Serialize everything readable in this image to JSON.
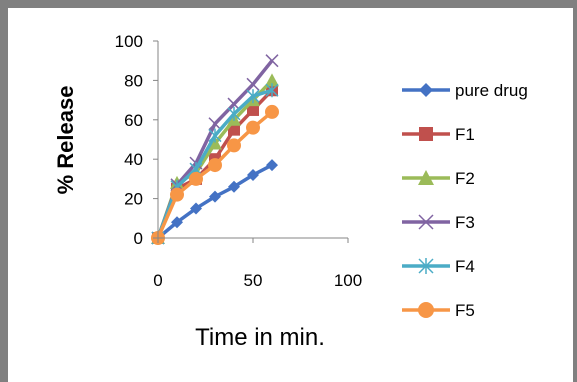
{
  "chart_data": {
    "type": "line",
    "title": "",
    "xlabel": "Time in min.",
    "ylabel": "% Release",
    "xlim": [
      0,
      100
    ],
    "ylim": [
      0,
      100
    ],
    "x_ticks": [
      "0",
      "50",
      "100"
    ],
    "y_ticks": [
      "0",
      "20",
      "40",
      "60",
      "80",
      "100"
    ],
    "grid": false,
    "legend_position": "right",
    "series": [
      {
        "name": "pure drug",
        "marker": "diamond",
        "color": "#4472c4",
        "x": [
          0,
          10,
          20,
          30,
          40,
          50,
          60
        ],
        "y": [
          0,
          8,
          15,
          21,
          26,
          32,
          37
        ]
      },
      {
        "name": "F1",
        "marker": "square",
        "color": "#c0504d",
        "x": [
          0,
          10,
          20,
          30,
          40,
          50,
          60
        ],
        "y": [
          0,
          25,
          30,
          40,
          55,
          65,
          75
        ]
      },
      {
        "name": "F2",
        "marker": "triangle",
        "color": "#9bbb59",
        "x": [
          0,
          10,
          20,
          30,
          40,
          50,
          60
        ],
        "y": [
          0,
          28,
          33,
          48,
          60,
          70,
          80
        ]
      },
      {
        "name": "F3",
        "marker": "x",
        "color": "#8064a2",
        "x": [
          0,
          10,
          20,
          30,
          40,
          50,
          60
        ],
        "y": [
          0,
          27,
          38,
          58,
          68,
          78,
          90
        ]
      },
      {
        "name": "F4",
        "marker": "star",
        "color": "#4bacc6",
        "x": [
          0,
          10,
          20,
          30,
          40,
          50,
          60
        ],
        "y": [
          0,
          26,
          35,
          52,
          63,
          72,
          75
        ]
      },
      {
        "name": "F5",
        "marker": "circle",
        "color": "#f79646",
        "x": [
          0,
          10,
          20,
          30,
          40,
          50,
          60
        ],
        "y": [
          0,
          22,
          30,
          37,
          47,
          56,
          64
        ]
      }
    ]
  }
}
